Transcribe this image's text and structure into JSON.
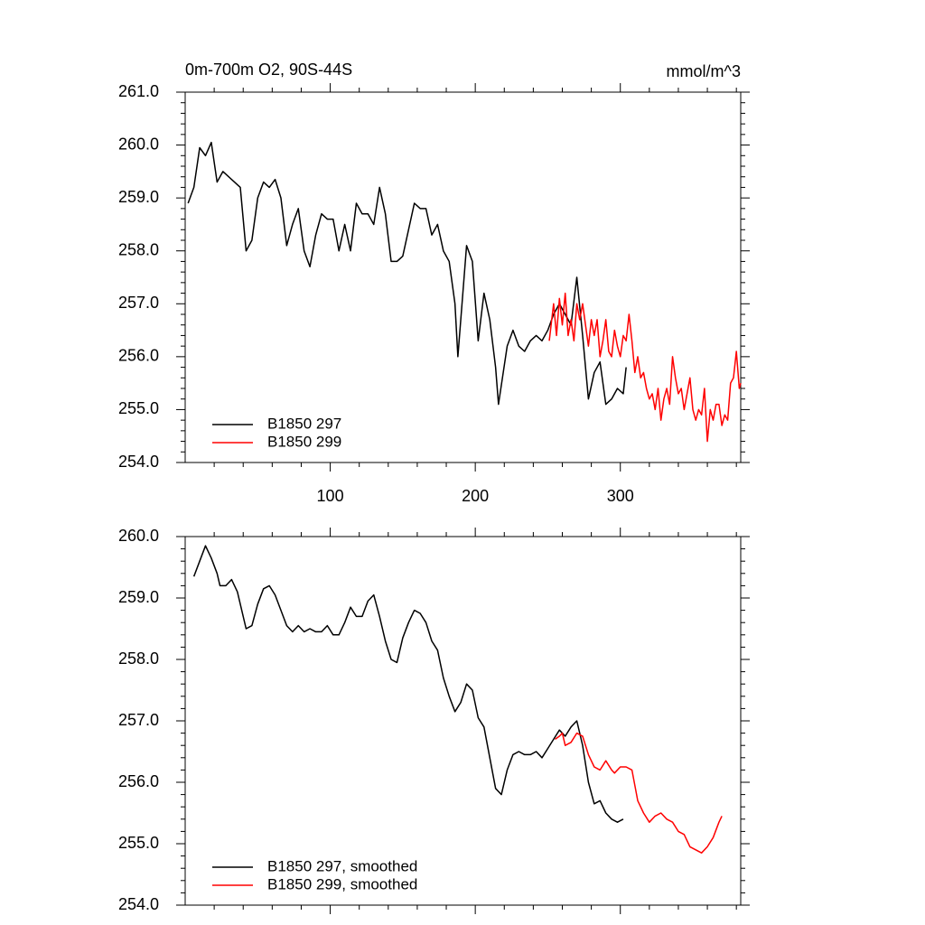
{
  "chart_data": [
    {
      "type": "line",
      "title": "0m-700m O2, 90S-44S",
      "units": "mmol/m^3",
      "xlim": [
        0,
        383
      ],
      "xticks": [
        100,
        200,
        300
      ],
      "show_xtick_labels": true,
      "ylim": [
        254,
        261
      ],
      "yticks": [
        {
          "value": 254,
          "label": "254.0"
        },
        {
          "value": 255,
          "label": "255.0"
        },
        {
          "value": 256,
          "label": "256.0"
        },
        {
          "value": 257,
          "label": "257.0"
        },
        {
          "value": 258,
          "label": "258.0"
        },
        {
          "value": 259,
          "label": "259.0"
        },
        {
          "value": 260,
          "label": "260.0"
        },
        {
          "value": 261,
          "label": "261.0"
        }
      ],
      "legend": "lower left",
      "series": [
        {
          "name": "B1850 297",
          "color": "#000000",
          "x": [
            2,
            6,
            10,
            14,
            18,
            22,
            26,
            30,
            34,
            38,
            42,
            46,
            50,
            54,
            58,
            62,
            66,
            70,
            74,
            78,
            82,
            86,
            90,
            94,
            98,
            102,
            106,
            110,
            114,
            118,
            122,
            126,
            130,
            134,
            138,
            142,
            146,
            150,
            154,
            158,
            162,
            166,
            170,
            174,
            178,
            182,
            186,
            188,
            194,
            198,
            202,
            206,
            210,
            214,
            216,
            222,
            226,
            230,
            234,
            238,
            242,
            246,
            250,
            254,
            258,
            262,
            266,
            270,
            274,
            278,
            282,
            286,
            290,
            294,
            298,
            302,
            304
          ],
          "values": [
            258.9,
            259.2,
            259.95,
            259.8,
            260.05,
            259.3,
            259.5,
            259.4,
            259.3,
            259.2,
            258.0,
            258.2,
            259.0,
            259.3,
            259.2,
            259.35,
            259.0,
            258.1,
            258.5,
            258.8,
            258.0,
            257.7,
            258.3,
            258.7,
            258.6,
            258.6,
            258.0,
            258.5,
            258.0,
            258.9,
            258.7,
            258.7,
            258.5,
            259.2,
            258.7,
            257.8,
            257.8,
            257.9,
            258.4,
            258.9,
            258.8,
            258.8,
            258.3,
            258.5,
            258.0,
            257.8,
            257.0,
            256.0,
            258.1,
            257.8,
            256.3,
            257.2,
            256.7,
            255.8,
            255.1,
            256.2,
            256.5,
            256.2,
            256.1,
            256.3,
            256.4,
            256.3,
            256.5,
            256.8,
            257.0,
            256.8,
            256.6,
            257.5,
            256.4,
            255.2,
            255.7,
            255.9,
            255.1,
            255.2,
            255.4,
            255.3,
            255.8
          ]
        },
        {
          "name": "B1850 299",
          "color": "#ff0000",
          "x": [
            251,
            254,
            256,
            258,
            260,
            262,
            264,
            266,
            268,
            270,
            272,
            274,
            276,
            278,
            280,
            282,
            284,
            286,
            288,
            290,
            292,
            294,
            296,
            298,
            300,
            302,
            304,
            306,
            308,
            310,
            312,
            314,
            316,
            318,
            320,
            322,
            324,
            326,
            328,
            330,
            332,
            334,
            336,
            338,
            340,
            342,
            344,
            346,
            348,
            350,
            352,
            354,
            356,
            358,
            360,
            362,
            364,
            366,
            368,
            370,
            372,
            374,
            376,
            378,
            380,
            382,
            383
          ],
          "values": [
            256.3,
            257.0,
            256.4,
            257.1,
            256.6,
            257.2,
            256.4,
            256.7,
            256.3,
            257.0,
            256.7,
            257.0,
            256.6,
            256.2,
            256.7,
            256.4,
            256.7,
            256.0,
            256.3,
            256.7,
            256.1,
            256.0,
            256.5,
            256.2,
            256.0,
            256.4,
            256.3,
            256.8,
            256.3,
            255.7,
            256.0,
            255.6,
            255.7,
            255.4,
            255.2,
            255.3,
            255.0,
            255.4,
            254.8,
            255.2,
            255.4,
            255.1,
            256.0,
            255.6,
            255.3,
            255.4,
            255.0,
            255.3,
            255.6,
            255.0,
            254.8,
            255.0,
            254.9,
            255.4,
            254.4,
            255.0,
            254.8,
            255.1,
            255.1,
            254.7,
            254.9,
            254.8,
            255.5,
            255.6,
            256.1,
            255.4,
            255.5
          ]
        }
      ]
    },
    {
      "type": "line",
      "xlim": [
        0,
        383
      ],
      "xticks": [
        100,
        200,
        300
      ],
      "show_xtick_labels": false,
      "ylim": [
        254,
        260
      ],
      "yticks": [
        {
          "value": 254,
          "label": "254.0"
        },
        {
          "value": 255,
          "label": "255.0"
        },
        {
          "value": 256,
          "label": "256.0"
        },
        {
          "value": 257,
          "label": "257.0"
        },
        {
          "value": 258,
          "label": "258.0"
        },
        {
          "value": 259,
          "label": "259.0"
        },
        {
          "value": 260,
          "label": "260.0"
        }
      ],
      "legend": "lower left",
      "series": [
        {
          "name": "B1850 297, smoothed",
          "color": "#000000",
          "x": [
            6,
            10,
            14,
            18,
            22,
            24,
            28,
            32,
            36,
            40,
            42,
            46,
            50,
            54,
            58,
            62,
            66,
            70,
            74,
            78,
            82,
            86,
            90,
            94,
            98,
            102,
            106,
            110,
            114,
            118,
            122,
            126,
            130,
            134,
            138,
            142,
            146,
            150,
            154,
            158,
            162,
            166,
            170,
            174,
            178,
            182,
            186,
            190,
            194,
            198,
            202,
            206,
            210,
            214,
            218,
            222,
            226,
            230,
            234,
            238,
            242,
            246,
            250,
            254,
            258,
            262,
            266,
            270,
            274,
            278,
            282,
            286,
            290,
            294,
            298,
            302
          ],
          "values": [
            259.35,
            259.6,
            259.85,
            259.65,
            259.4,
            259.2,
            259.2,
            259.3,
            259.1,
            258.7,
            258.5,
            258.55,
            258.9,
            259.15,
            259.2,
            259.05,
            258.8,
            258.55,
            258.45,
            258.55,
            258.45,
            258.5,
            258.45,
            258.45,
            258.55,
            258.4,
            258.4,
            258.6,
            258.85,
            258.7,
            258.7,
            258.95,
            259.05,
            258.7,
            258.3,
            258.0,
            257.95,
            258.35,
            258.6,
            258.8,
            258.75,
            258.6,
            258.3,
            258.15,
            257.7,
            257.4,
            257.15,
            257.3,
            257.6,
            257.5,
            257.05,
            256.9,
            256.4,
            255.9,
            255.8,
            256.2,
            256.45,
            256.5,
            256.45,
            256.45,
            256.5,
            256.4,
            256.55,
            256.7,
            256.85,
            256.75,
            256.9,
            257.0,
            256.6,
            256.0,
            255.65,
            255.7,
            255.5,
            255.4,
            255.35,
            255.4
          ]
        },
        {
          "name": "B1850 299, smoothed",
          "color": "#ff0000",
          "x": [
            255,
            258,
            260,
            262,
            266,
            270,
            274,
            278,
            282,
            286,
            290,
            294,
            296,
            300,
            304,
            308,
            312,
            316,
            320,
            324,
            328,
            332,
            336,
            340,
            344,
            348,
            352,
            356,
            360,
            364,
            368,
            370
          ],
          "values": [
            256.7,
            256.75,
            256.8,
            256.6,
            256.65,
            256.8,
            256.75,
            256.45,
            256.25,
            256.2,
            256.35,
            256.2,
            256.15,
            256.25,
            256.25,
            256.2,
            255.7,
            255.5,
            255.35,
            255.45,
            255.5,
            255.4,
            255.35,
            255.2,
            255.15,
            254.95,
            254.9,
            254.85,
            254.95,
            255.1,
            255.35,
            255.45
          ]
        }
      ]
    }
  ]
}
